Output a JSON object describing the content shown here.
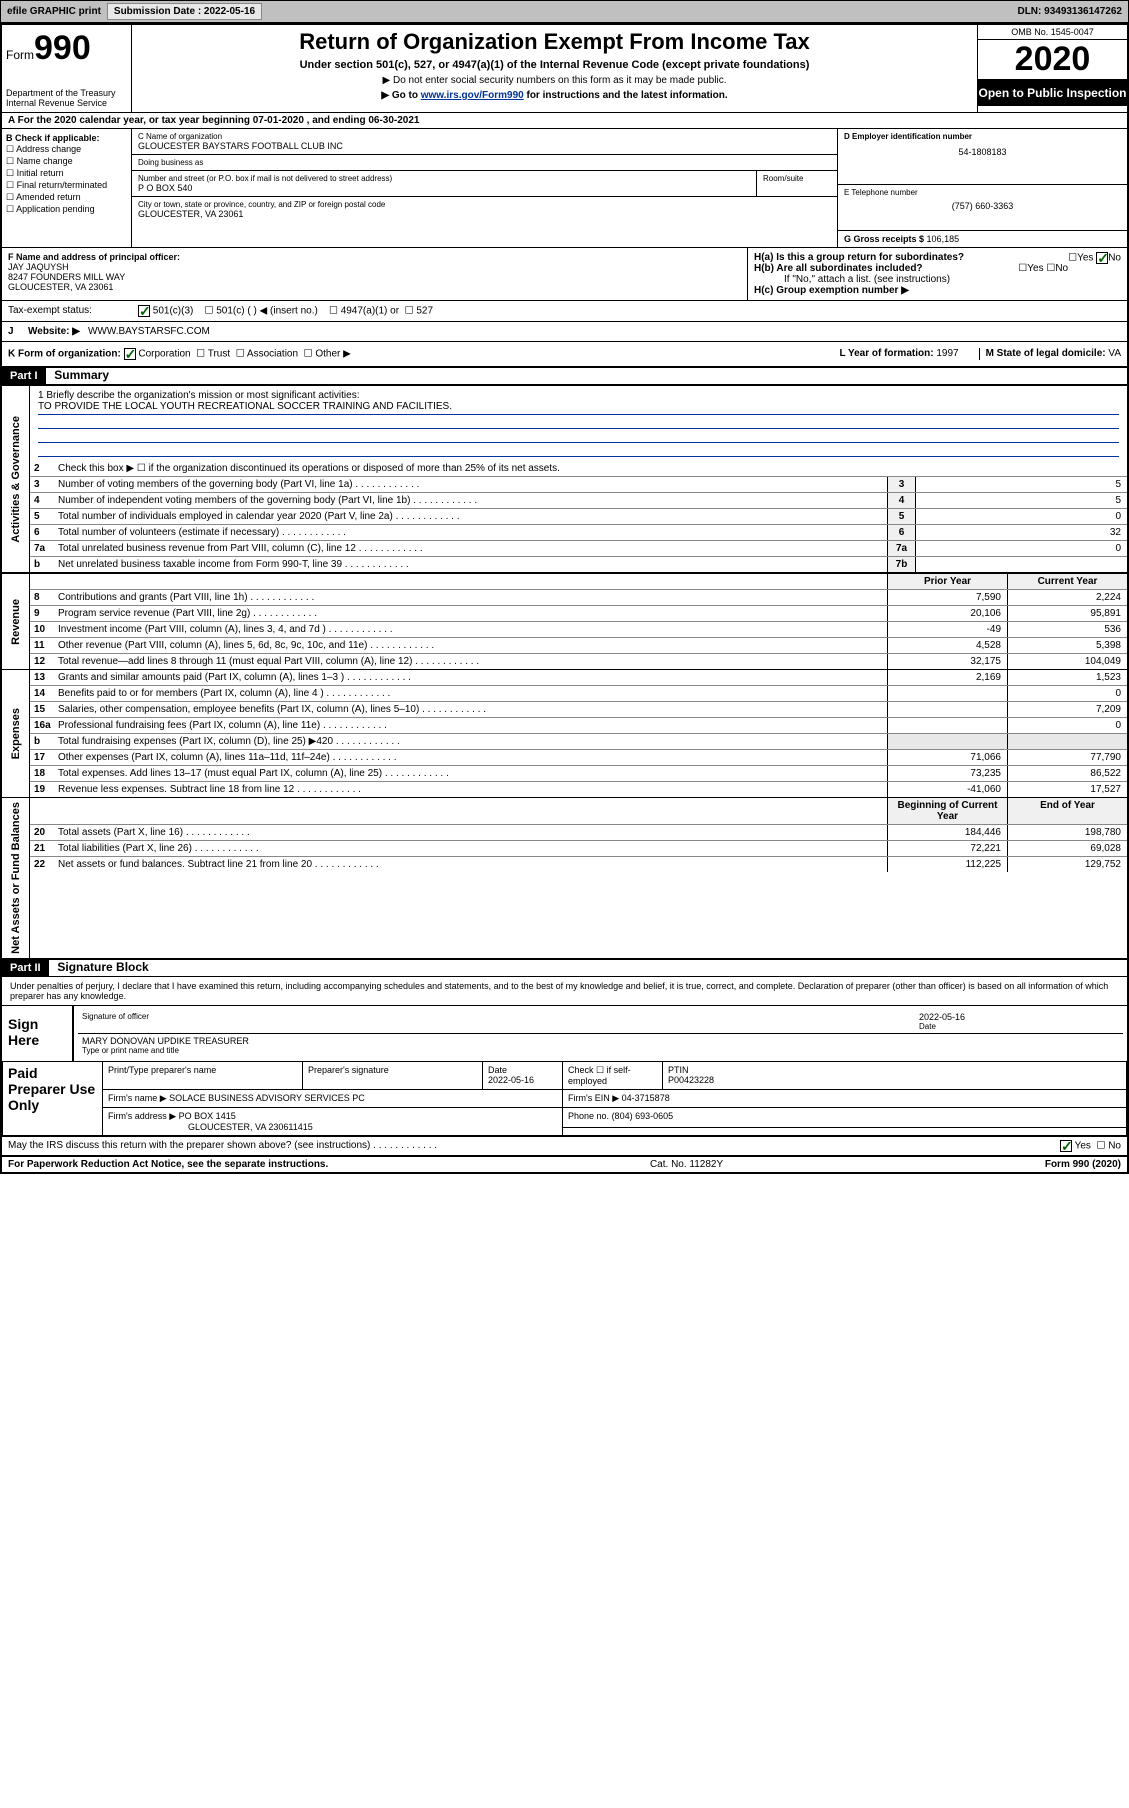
{
  "topbar": {
    "efile": "efile GRAPHIC print",
    "submission_label": "Submission Date : 2022-05-16",
    "dln": "DLN: 93493136147262"
  },
  "header": {
    "form_label": "Form",
    "form_number": "990",
    "dept": "Department of the Treasury\nInternal Revenue Service",
    "title": "Return of Organization Exempt From Income Tax",
    "subtitle": "Under section 501(c), 527, or 4947(a)(1) of the Internal Revenue Code (except private foundations)",
    "note1": "▶ Do not enter social security numbers on this form as it may be made public.",
    "note2_pre": "▶ Go to ",
    "note2_link": "www.irs.gov/Form990",
    "note2_post": " for instructions and the latest information.",
    "omb": "OMB No. 1545-0047",
    "year": "2020",
    "open_public": "Open to Public Inspection"
  },
  "line_a": "For the 2020 calendar year, or tax year beginning 07-01-2020   , and ending 06-30-2021",
  "box_b": {
    "label": "B Check if applicable:",
    "opts": [
      "Address change",
      "Name change",
      "Initial return",
      "Final return/terminated",
      "Amended return",
      "Application pending"
    ]
  },
  "box_c": {
    "name_lbl": "C Name of organization",
    "name": "GLOUCESTER BAYSTARS FOOTBALL CLUB INC",
    "dba_lbl": "Doing business as",
    "dba": "",
    "addr_lbl": "Number and street (or P.O. box if mail is not delivered to street address)",
    "room_lbl": "Room/suite",
    "addr": "P O BOX 540",
    "city_lbl": "City or town, state or province, country, and ZIP or foreign postal code",
    "city": "GLOUCESTER, VA  23061"
  },
  "box_d": {
    "lbl": "D Employer identification number",
    "val": "54-1808183"
  },
  "box_e": {
    "lbl": "E Telephone number",
    "val": "(757) 660-3363"
  },
  "box_g": {
    "lbl": "G Gross receipts $ ",
    "val": "106,185"
  },
  "box_f": {
    "lbl": "F  Name and address of principal officer:",
    "name": "JAY JAQUYSH",
    "addr1": "8247 FOUNDERS MILL WAY",
    "addr2": "GLOUCESTER, VA  23061"
  },
  "box_h": {
    "ha": "H(a)  Is this a group return for subordinates?",
    "hb": "H(b)  Are all subordinates included?",
    "hb_note": "If \"No,\" attach a list. (see instructions)",
    "hc": "H(c)  Group exemption number ▶",
    "yes": "Yes",
    "no": "No"
  },
  "tax_status": {
    "lbl": "Tax-exempt status:",
    "o1": "501(c)(3)",
    "o2": "501(c) (  ) ◀ (insert no.)",
    "o3": "4947(a)(1) or",
    "o4": "527"
  },
  "line_j": {
    "lbl": "J",
    "txt": "Website: ▶",
    "val": "WWW.BAYSTARSFC.COM"
  },
  "line_k": {
    "lbl": "K Form of organization:",
    "o1": "Corporation",
    "o2": "Trust",
    "o3": "Association",
    "o4": "Other ▶"
  },
  "line_l": {
    "lbl": "L Year of formation: ",
    "val": "1997"
  },
  "line_m": {
    "lbl": "M State of legal domicile: ",
    "val": "VA"
  },
  "part1": {
    "hdr": "Part I",
    "title": "Summary"
  },
  "side_labels": {
    "act": "Activities & Governance",
    "rev": "Revenue",
    "exp": "Expenses",
    "net": "Net Assets or Fund Balances"
  },
  "summary": {
    "l1_lbl": "1  Briefly describe the organization's mission or most significant activities:",
    "l1_val": "TO PROVIDE THE LOCAL YOUTH RECREATIONAL SOCCER TRAINING AND FACILITIES.",
    "l2": "Check this box ▶ ☐  if the organization discontinued its operations or disposed of more than 25% of its net assets.",
    "lines_gov": [
      {
        "n": "3",
        "t": "Number of voting members of the governing body (Part VI, line 1a)",
        "cn": "3",
        "cv": "5"
      },
      {
        "n": "4",
        "t": "Number of independent voting members of the governing body (Part VI, line 1b)",
        "cn": "4",
        "cv": "5"
      },
      {
        "n": "5",
        "t": "Total number of individuals employed in calendar year 2020 (Part V, line 2a)",
        "cn": "5",
        "cv": "0"
      },
      {
        "n": "6",
        "t": "Total number of volunteers (estimate if necessary)",
        "cn": "6",
        "cv": "32"
      },
      {
        "n": "7a",
        "t": "Total unrelated business revenue from Part VIII, column (C), line 12",
        "cn": "7a",
        "cv": "0"
      },
      {
        "n": "b",
        "t": "Net unrelated business taxable income from Form 990-T, line 39",
        "cn": "7b",
        "cv": ""
      }
    ],
    "col_hdr": {
      "prior": "Prior Year",
      "current": "Current Year"
    },
    "lines_rev": [
      {
        "n": "8",
        "t": "Contributions and grants (Part VIII, line 1h)",
        "c1": "7,590",
        "c2": "2,224"
      },
      {
        "n": "9",
        "t": "Program service revenue (Part VIII, line 2g)",
        "c1": "20,106",
        "c2": "95,891"
      },
      {
        "n": "10",
        "t": "Investment income (Part VIII, column (A), lines 3, 4, and 7d )",
        "c1": "-49",
        "c2": "536"
      },
      {
        "n": "11",
        "t": "Other revenue (Part VIII, column (A), lines 5, 6d, 8c, 9c, 10c, and 11e)",
        "c1": "4,528",
        "c2": "5,398"
      },
      {
        "n": "12",
        "t": "Total revenue—add lines 8 through 11 (must equal Part VIII, column (A), line 12)",
        "c1": "32,175",
        "c2": "104,049"
      }
    ],
    "lines_exp": [
      {
        "n": "13",
        "t": "Grants and similar amounts paid (Part IX, column (A), lines 1–3 )",
        "c1": "2,169",
        "c2": "1,523"
      },
      {
        "n": "14",
        "t": "Benefits paid to or for members (Part IX, column (A), line 4 )",
        "c1": "",
        "c2": "0"
      },
      {
        "n": "15",
        "t": "Salaries, other compensation, employee benefits (Part IX, column (A), lines 5–10)",
        "c1": "",
        "c2": "7,209"
      },
      {
        "n": "16a",
        "t": "Professional fundraising fees (Part IX, column (A), line 11e)",
        "c1": "",
        "c2": "0"
      },
      {
        "n": "b",
        "t": "Total fundraising expenses (Part IX, column (D), line 25) ▶420",
        "c1": "",
        "c2": "",
        "shade": true
      },
      {
        "n": "17",
        "t": "Other expenses (Part IX, column (A), lines 11a–11d, 11f–24e)",
        "c1": "71,066",
        "c2": "77,790"
      },
      {
        "n": "18",
        "t": "Total expenses. Add lines 13–17 (must equal Part IX, column (A), line 25)",
        "c1": "73,235",
        "c2": "86,522"
      },
      {
        "n": "19",
        "t": "Revenue less expenses. Subtract line 18 from line 12",
        "c1": "-41,060",
        "c2": "17,527"
      }
    ],
    "col_hdr2": {
      "beg": "Beginning of Current Year",
      "end": "End of Year"
    },
    "lines_net": [
      {
        "n": "20",
        "t": "Total assets (Part X, line 16)",
        "c1": "184,446",
        "c2": "198,780"
      },
      {
        "n": "21",
        "t": "Total liabilities (Part X, line 26)",
        "c1": "72,221",
        "c2": "69,028"
      },
      {
        "n": "22",
        "t": "Net assets or fund balances. Subtract line 21 from line 20",
        "c1": "112,225",
        "c2": "129,752"
      }
    ]
  },
  "part2": {
    "hdr": "Part II",
    "title": "Signature Block"
  },
  "sig": {
    "perjury": "Under penalties of perjury, I declare that I have examined this return, including accompanying schedules and statements, and to the best of my knowledge and belief, it is true, correct, and complete. Declaration of preparer (other than officer) is based on all information of which preparer has any knowledge.",
    "sign_here": "Sign Here",
    "sig_officer": "Signature of officer",
    "date_lbl": "Date",
    "date_val": "2022-05-16",
    "name": "MARY DONOVAN UPDIKE  TREASURER",
    "name_lbl": "Type or print name and title"
  },
  "paid": {
    "label": "Paid Preparer Use Only",
    "h1": "Print/Type preparer's name",
    "h2": "Preparer's signature",
    "h3": "Date",
    "h3v": "2022-05-16",
    "h4": "Check ☐ if self-employed",
    "h5": "PTIN",
    "h5v": "P00423228",
    "firm_name_lbl": "Firm's name    ▶",
    "firm_name": "SOLACE BUSINESS ADVISORY SERVICES PC",
    "firm_ein_lbl": "Firm's EIN ▶",
    "firm_ein": "04-3715878",
    "firm_addr_lbl": "Firm's address ▶",
    "firm_addr1": "PO BOX 1415",
    "firm_addr2": "GLOUCESTER, VA  230611415",
    "phone_lbl": "Phone no.",
    "phone": "(804) 693-0605"
  },
  "irs_discuss": "May the IRS discuss this return with the preparer shown above? (see instructions)",
  "footer": {
    "left": "For Paperwork Reduction Act Notice, see the separate instructions.",
    "mid": "Cat. No. 11282Y",
    "right": "Form 990 (2020)"
  }
}
